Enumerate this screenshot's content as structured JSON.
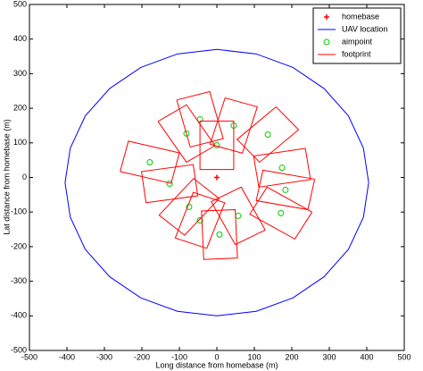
{
  "chart_data": {
    "type": "line",
    "xlabel": "Long distance from homebase (m)",
    "ylabel": "Lat distance from homebase (m)",
    "xlim": [
      -500,
      500
    ],
    "ylim": [
      -500,
      500
    ],
    "xticks": [
      -500,
      -400,
      -300,
      -200,
      -100,
      0,
      100,
      200,
      300,
      400,
      500
    ],
    "yticks": [
      -500,
      -400,
      -300,
      -200,
      -100,
      0,
      100,
      200,
      300,
      400,
      500
    ],
    "grid": false,
    "legend": "upper right",
    "series": [
      {
        "name": "homebase",
        "color": "#ff0000",
        "mode": "markers",
        "marker": "+",
        "x": [
          0
        ],
        "values": [
          0
        ]
      },
      {
        "name": "UAV location",
        "color": "#0000ff",
        "mode": "lines",
        "x": [
          405,
          391,
          351,
          286,
          203,
          105,
          0,
          -105,
          -203,
          -286,
          -351,
          -391,
          -405,
          -391,
          -351,
          -286,
          -203,
          -105,
          0,
          105,
          203,
          286,
          351,
          391,
          405
        ],
        "values": [
          -15,
          85,
          178,
          257,
          318,
          357,
          370,
          357,
          318,
          257,
          178,
          85,
          -15,
          -115,
          -208,
          -287,
          -348,
          -387,
          -400,
          -387,
          -348,
          -287,
          -208,
          -115,
          -15
        ]
      },
      {
        "name": "aimpoint",
        "color": "#00cc00",
        "mode": "markers",
        "marker": "o",
        "x": [
          -45,
          45,
          136,
          -81,
          0,
          -179,
          174,
          -126,
          183,
          -74,
          57,
          171,
          -45,
          7
        ],
        "values": [
          168,
          150,
          124,
          127,
          93,
          44,
          28,
          -18,
          -36,
          -85,
          -111,
          -103,
          -124,
          -165
        ]
      },
      {
        "name": "footprint",
        "color": "#ff0000",
        "mode": "lines",
        "x": [
          -107,
          -19,
          17,
          -71,
          -107,
          null,
          22,
          108,
          68,
          -18,
          22,
          null,
          158,
          218,
          114,
          54,
          158,
          null,
          -157,
          -81,
          -5,
          -81,
          -157,
          null,
          -45,
          45,
          45,
          -45,
          -45,
          null,
          -258,
          -236,
          -100,
          -122,
          -258,
          null,
          236,
          250,
          112,
          98,
          236,
          null,
          -189,
          -201,
          -63,
          -51,
          -189,
          null,
          261,
          243,
          105,
          123,
          261,
          null,
          -86,
          -154,
          -62,
          6,
          -86,
          null,
          129,
          49,
          -15,
          65,
          129,
          null,
          254,
          208,
          88,
          134,
          254,
          null,
          -27,
          -111,
          -63,
          21,
          -27,
          null,
          55,
          -35,
          -41,
          49,
          55
        ],
        "values": [
          224,
          248,
          112,
          88,
          224,
          null,
          230,
          204,
          70,
          96,
          230,
          null,
          204,
          138,
          44,
          110,
          204,
          null,
          162,
          210,
          92,
          44,
          162,
          null,
          163,
          163,
          23,
          23,
          163,
          null,
          17,
          105,
          71,
          -17,
          17,
          null,
          84,
          -6,
          -28,
          62,
          84,
          null,
          -73,
          17,
          37,
          -53,
          -73,
          null,
          -5,
          -93,
          -67,
          21,
          -5,
          null,
          -167,
          -109,
          -3,
          -61,
          -167,
          null,
          -152,
          -194,
          -70,
          -28,
          -152,
          null,
          -100,
          -178,
          -106,
          -28,
          -100,
          null,
          -205,
          -175,
          -43,
          -73,
          -205,
          null,
          -233,
          -237,
          -97,
          -93,
          -233
        ]
      }
    ]
  }
}
